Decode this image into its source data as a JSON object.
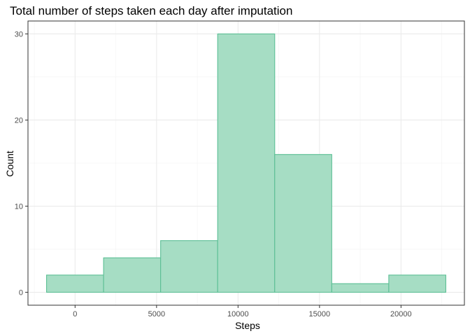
{
  "chart_data": {
    "type": "bar",
    "title": "Total number of steps taken each day after imputation",
    "xlabel": "Steps",
    "ylabel": "Count",
    "bins": [
      {
        "start": -1750,
        "end": 1750,
        "count": 2
      },
      {
        "start": 1750,
        "end": 5250,
        "count": 4
      },
      {
        "start": 5250,
        "end": 8750,
        "count": 6
      },
      {
        "start": 8750,
        "end": 12250,
        "count": 30
      },
      {
        "start": 12250,
        "end": 15750,
        "count": 16
      },
      {
        "start": 15750,
        "end": 19250,
        "count": 1
      },
      {
        "start": 19250,
        "end": 22750,
        "count": 2
      }
    ],
    "xlim": [
      -2890,
      23890
    ],
    "ylim": [
      -1.5,
      31.5
    ],
    "xticks": [
      0,
      5000,
      10000,
      15000,
      20000
    ],
    "xtick_labels": [
      "0",
      "5000",
      "10000",
      "15000",
      "20000"
    ],
    "yticks": [
      0,
      10,
      20,
      30
    ],
    "ytick_labels": [
      "0",
      "10",
      "20",
      "30"
    ],
    "grid": true,
    "bar_fill": "#a6ddc4",
    "bar_stroke": "#5cbf95"
  }
}
